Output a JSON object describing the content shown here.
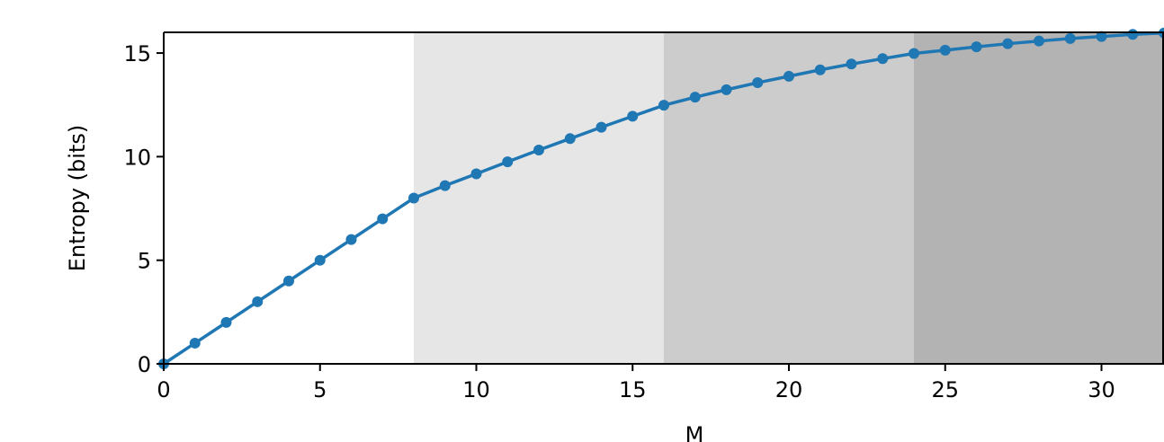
{
  "chart_data": {
    "type": "line",
    "title": "",
    "xlabel": "M",
    "ylabel": "Entropy (bits)",
    "xlim": [
      0,
      32
    ],
    "ylim": [
      0,
      16
    ],
    "x_ticks": [
      0,
      5,
      10,
      15,
      20,
      25,
      30
    ],
    "y_ticks": [
      0,
      5,
      10,
      15
    ],
    "grid": false,
    "legend": "none",
    "colors": {
      "line": "#1f77b4",
      "band_1": "#e6e6e6",
      "band_2": "#cccccc",
      "band_3": "#b3b3b3"
    },
    "shaded_bands": [
      {
        "x_start": 8,
        "x_end": 16
      },
      {
        "x_start": 16,
        "x_end": 24
      },
      {
        "x_start": 24,
        "x_end": 32
      }
    ],
    "series": [
      {
        "x": [
          0,
          1,
          2,
          3,
          4,
          5,
          6,
          7,
          8,
          9,
          10,
          11,
          12,
          13,
          14,
          15,
          16,
          17,
          18,
          19,
          20,
          21,
          22,
          23,
          24,
          25,
          26,
          27,
          28,
          29,
          30,
          31,
          32
        ],
        "y": [
          0,
          1,
          2,
          3,
          4,
          5,
          6,
          7,
          8,
          8.6,
          9.17,
          9.75,
          10.32,
          10.87,
          11.42,
          11.95,
          12.48,
          12.87,
          13.23,
          13.57,
          13.88,
          14.19,
          14.47,
          14.73,
          14.98,
          15.14,
          15.3,
          15.45,
          15.58,
          15.7,
          15.8,
          15.9,
          15.97
        ]
      }
    ]
  }
}
